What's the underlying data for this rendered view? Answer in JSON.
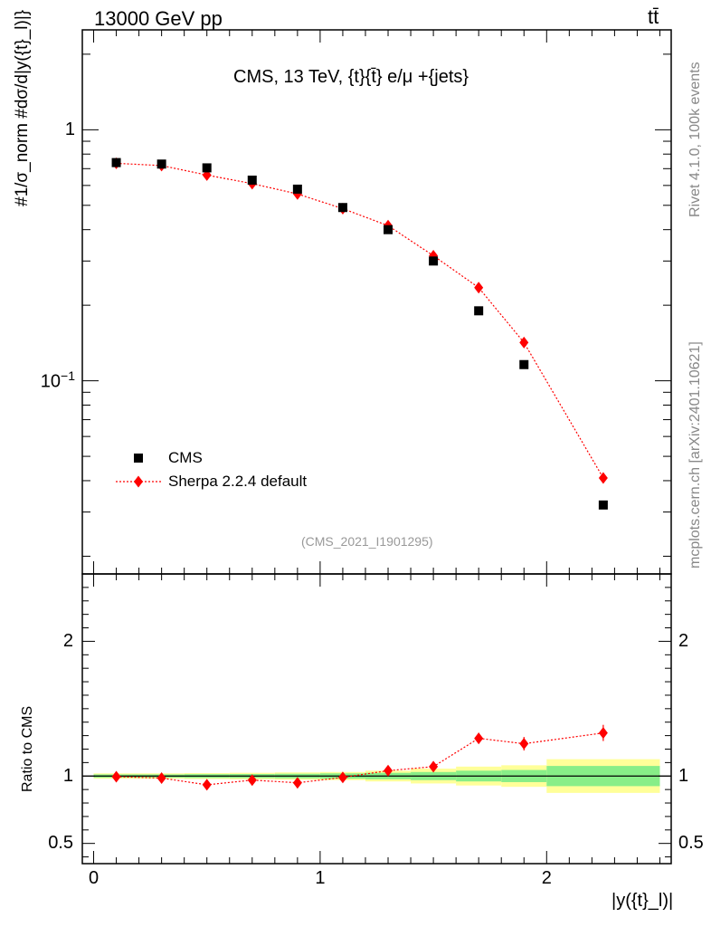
{
  "header": {
    "left": "13000 GeV pp",
    "right": "tt̄",
    "plot_title": "CMS, 13 TeV, {t}{t̄} e/μ +{jets}",
    "analysis_id": "(CMS_2021_I1901295)"
  },
  "side": {
    "rivet": "Rivet 4.1.0,  100k events",
    "source": "mcplots.cern.ch [arXiv:2401.10621]"
  },
  "colors": {
    "mc": "#ff0000",
    "data": "#000000",
    "band_inner": "#88ee88",
    "band_outer": "#ffff99"
  },
  "chart_data": [
    {
      "type": "scatter",
      "panel": "main",
      "ylabel": "#1/σ_norm #dσ/d|y({t}_l)|}",
      "yscale": "log",
      "ylim": [
        0.017,
        2.5
      ],
      "xlim": [
        -0.05,
        2.55
      ],
      "yticks": [
        {
          "value": 1,
          "label": "1"
        },
        {
          "value": 0.1,
          "label": "10^-1"
        }
      ],
      "series": [
        {
          "name": "CMS",
          "marker": "square",
          "x": [
            0.1,
            0.3,
            0.5,
            0.7,
            0.9,
            1.1,
            1.3,
            1.5,
            1.7,
            1.9,
            2.25
          ],
          "values": [
            0.74,
            0.73,
            0.705,
            0.63,
            0.58,
            0.49,
            0.4,
            0.3,
            0.19,
            0.116,
            0.032
          ]
        },
        {
          "name": "Sherpa 2.2.4 default",
          "marker": "diamond",
          "x": [
            0.1,
            0.3,
            0.5,
            0.7,
            0.9,
            1.1,
            1.3,
            1.5,
            1.7,
            1.9,
            2.25
          ],
          "values": [
            0.735,
            0.72,
            0.66,
            0.61,
            0.555,
            0.485,
            0.415,
            0.315,
            0.235,
            0.142,
            0.041
          ]
        }
      ]
    },
    {
      "type": "line",
      "panel": "ratio",
      "ylabel": "Ratio to CMS",
      "xlabel": "|y({t}_l)|",
      "ylim": [
        0.35,
        2.5
      ],
      "xlim": [
        -0.05,
        2.55
      ],
      "xticks": [
        {
          "value": 0,
          "label": "0"
        },
        {
          "value": 1,
          "label": "1"
        },
        {
          "value": 2,
          "label": "2"
        }
      ],
      "yticks": [
        {
          "value": 2,
          "label": "2"
        },
        {
          "value": 1,
          "label": "1"
        },
        {
          "value": 0.5,
          "label": "0.5"
        }
      ],
      "bin_edges": [
        0,
        0.2,
        0.4,
        0.6,
        0.8,
        1.0,
        1.2,
        1.4,
        1.6,
        1.8,
        2.0,
        2.5
      ],
      "band_inner": [
        0.012,
        0.012,
        0.014,
        0.015,
        0.017,
        0.02,
        0.024,
        0.03,
        0.04,
        0.045,
        0.075
      ],
      "band_outer": [
        0.02,
        0.02,
        0.022,
        0.024,
        0.027,
        0.03,
        0.04,
        0.055,
        0.07,
        0.08,
        0.125
      ],
      "series": [
        {
          "name": "Sherpa 2.2.4 default",
          "x": [
            0.1,
            0.3,
            0.5,
            0.7,
            0.9,
            1.1,
            1.3,
            1.5,
            1.7,
            1.9,
            2.25
          ],
          "values": [
            0.995,
            0.985,
            0.935,
            0.97,
            0.95,
            0.99,
            1.04,
            1.07,
            1.28,
            1.24,
            1.32
          ],
          "errors": [
            0.01,
            0.01,
            0.012,
            0.012,
            0.014,
            0.015,
            0.02,
            0.025,
            0.04,
            0.05,
            0.06
          ]
        }
      ]
    }
  ]
}
